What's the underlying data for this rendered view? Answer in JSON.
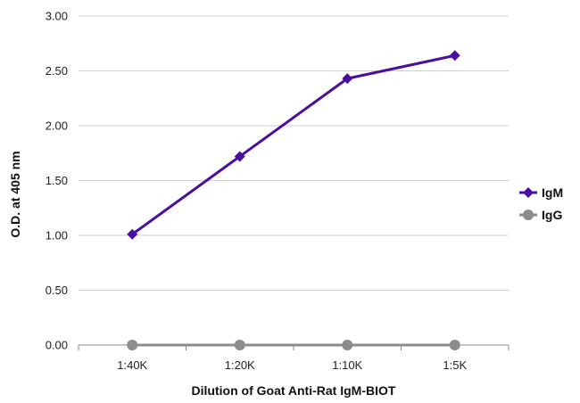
{
  "chart_data": {
    "type": "line",
    "categories": [
      "1:40K",
      "1:20K",
      "1:10K",
      "1:5K"
    ],
    "series": [
      {
        "name": "IgM",
        "values": [
          1.01,
          1.72,
          2.43,
          2.64
        ],
        "color": "#4B0FA0",
        "marker": "diamond"
      },
      {
        "name": "IgG",
        "values": [
          0.0,
          0.0,
          0.0,
          0.0
        ],
        "color": "#8C8C8C",
        "marker": "circle"
      }
    ],
    "yticks": [
      "0.00",
      "0.50",
      "1.00",
      "1.50",
      "2.00",
      "2.50",
      "3.00"
    ],
    "ylim": [
      0,
      3
    ],
    "xlabel": "Dilution of Goat Anti-Rat IgM-BIOT",
    "ylabel": "O.D. at 405 nm",
    "grid": true,
    "legend_position": "right"
  }
}
